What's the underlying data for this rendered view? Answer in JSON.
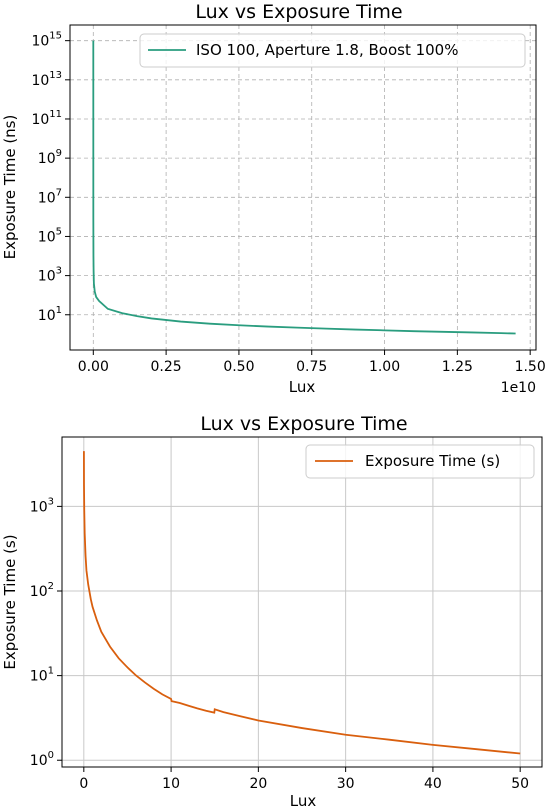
{
  "chart_data": [
    {
      "type": "line",
      "title": "Lux vs Exposure Time",
      "xlabel": "Lux",
      "ylabel": "Exposure Time (ns)",
      "x_offset_label": "1e10",
      "yscale": "log",
      "xlim": [
        -0.08,
        1.52
      ],
      "ylim_log10": [
        -0.8,
        15.8
      ],
      "x_ticks": [
        "0.00",
        "0.25",
        "0.50",
        "0.75",
        "1.00",
        "1.25",
        "1.50"
      ],
      "y_ticks": [
        {
          "base": "10",
          "exp": "1"
        },
        {
          "base": "10",
          "exp": "3"
        },
        {
          "base": "10",
          "exp": "5"
        },
        {
          "base": "10",
          "exp": "7"
        },
        {
          "base": "10",
          "exp": "9"
        },
        {
          "base": "10",
          "exp": "11"
        },
        {
          "base": "10",
          "exp": "13"
        },
        {
          "base": "10",
          "exp": "15"
        }
      ],
      "grid": "dashed",
      "legend_position": "top-right",
      "series": [
        {
          "name": "ISO 100, Aperture 1.8, Boost 100%",
          "color": "#2a9d7f",
          "points": [
            [
              0.0,
              1000000000000000.0
            ],
            [
              0.0001,
              1000000.0
            ],
            [
              0.0005,
              10000.0
            ],
            [
              0.001,
              2000
            ],
            [
              0.002,
              400
            ],
            [
              0.005,
              150
            ],
            [
              0.01,
              80
            ],
            [
              0.02,
              50
            ],
            [
              0.05,
              20
            ],
            [
              0.1,
              12
            ],
            [
              0.15,
              8.5
            ],
            [
              0.2,
              6.5
            ],
            [
              0.3,
              4.5
            ],
            [
              0.4,
              3.5
            ],
            [
              0.5,
              2.9
            ],
            [
              0.6,
              2.5
            ],
            [
              0.7,
              2.2
            ],
            [
              0.8,
              1.95
            ],
            [
              0.9,
              1.75
            ],
            [
              1.0,
              1.6
            ],
            [
              1.1,
              1.45
            ],
            [
              1.2,
              1.35
            ],
            [
              1.3,
              1.25
            ],
            [
              1.4,
              1.15
            ],
            [
              1.45,
              1.1
            ]
          ]
        }
      ]
    },
    {
      "type": "line",
      "title": "Lux vs Exposure Time",
      "xlabel": "Lux",
      "ylabel": "Exposure Time (s)",
      "yscale": "log",
      "xlim": [
        -2.5,
        52.5
      ],
      "ylim_log10": [
        -0.08,
        3.82
      ],
      "x_ticks": [
        "0",
        "10",
        "20",
        "30",
        "40",
        "50"
      ],
      "y_ticks": [
        {
          "base": "10",
          "exp": "0"
        },
        {
          "base": "10",
          "exp": "1"
        },
        {
          "base": "10",
          "exp": "2"
        },
        {
          "base": "10",
          "exp": "3"
        }
      ],
      "grid": "solid",
      "legend_position": "top-right",
      "series": [
        {
          "name": "Exposure Time (s)",
          "color": "#d95f0e",
          "points": [
            [
              0.01,
              4500
            ],
            [
              0.02,
              1800
            ],
            [
              0.05,
              900
            ],
            [
              0.1,
              480
            ],
            [
              0.2,
              260
            ],
            [
              0.3,
              175
            ],
            [
              0.5,
              120
            ],
            [
              0.8,
              80
            ],
            [
              1,
              65
            ],
            [
              1.5,
              45
            ],
            [
              2,
              33
            ],
            [
              3,
              22
            ],
            [
              4,
              16
            ],
            [
              5,
              12.5
            ],
            [
              6,
              10
            ],
            [
              7,
              8.3
            ],
            [
              8,
              7
            ],
            [
              9,
              6
            ],
            [
              10,
              5.3
            ],
            [
              10.05,
              5.0
            ],
            [
              11,
              4.75
            ],
            [
              12,
              4.4
            ],
            [
              13,
              4.1
            ],
            [
              14,
              3.85
            ],
            [
              14.95,
              3.65
            ],
            [
              15,
              4.0
            ],
            [
              16,
              3.7
            ],
            [
              18,
              3.3
            ],
            [
              20,
              2.95
            ],
            [
              25,
              2.4
            ],
            [
              30,
              2.0
            ],
            [
              35,
              1.75
            ],
            [
              40,
              1.52
            ],
            [
              45,
              1.35
            ],
            [
              50,
              1.2
            ]
          ]
        }
      ]
    }
  ]
}
